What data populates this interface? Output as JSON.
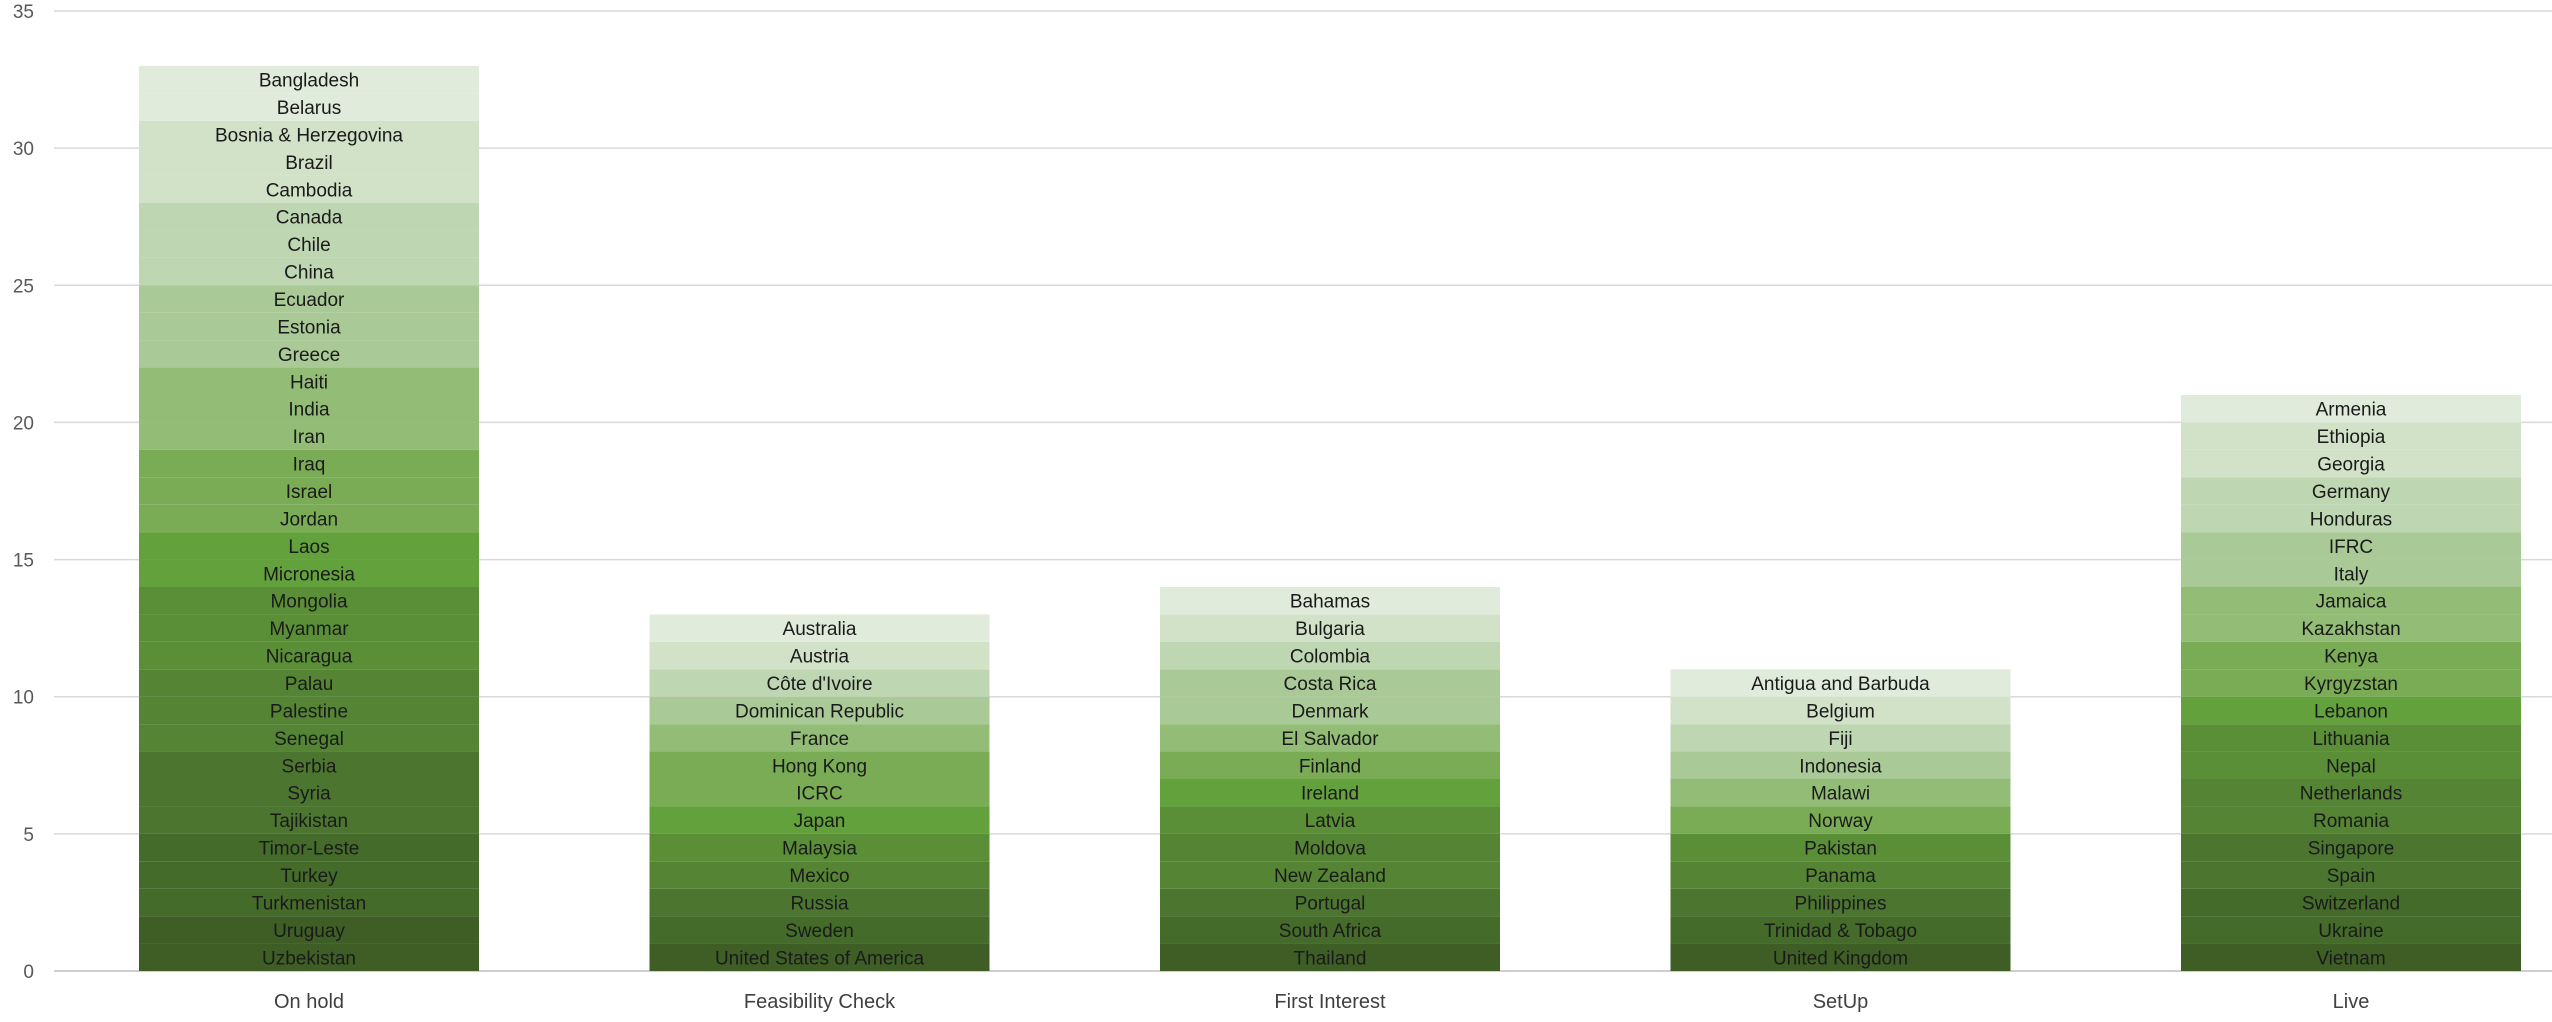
{
  "chart_data": {
    "type": "bar",
    "stacked": true,
    "title": "",
    "xlabel": "",
    "ylabel": "",
    "ylim": [
      0,
      35
    ],
    "yticks": [
      0,
      5,
      10,
      15,
      20,
      25,
      30,
      35
    ],
    "grid": true,
    "legend": "none",
    "categories": [
      "On hold",
      "Feasibility Check",
      "First Interest",
      "SetUp",
      "Live"
    ],
    "values": [
      33,
      13,
      14,
      11,
      21
    ],
    "segment_value": 1,
    "segments": [
      [
        "Uzbekistan",
        "Uruguay",
        "Turkmenistan",
        "Turkey",
        "Timor-Leste",
        "Tajikistan",
        "Syria",
        "Serbia",
        "Senegal",
        "Palestine",
        "Palau",
        "Nicaragua",
        "Myanmar",
        "Mongolia",
        "Micronesia",
        "Laos",
        "Jordan",
        "Israel",
        "Iraq",
        "Iran",
        "India",
        "Haiti",
        "Greece",
        "Estonia",
        "Ecuador",
        "China",
        "Chile",
        "Canada",
        "Cambodia",
        "Brazil",
        "Bosnia & Herzegovina",
        "Belarus",
        "Bangladesh"
      ],
      [
        "United States of America",
        "Sweden",
        "Russia",
        "Mexico",
        "Malaysia",
        "Japan",
        "ICRC",
        "Hong Kong",
        "France",
        "Dominican Republic",
        "Côte d'Ivoire",
        "Austria",
        "Australia"
      ],
      [
        "Thailand",
        "South Africa",
        "Portugal",
        "New Zealand",
        "Moldova",
        "Latvia",
        "Ireland",
        "Finland",
        "El Salvador",
        "Denmark",
        "Costa Rica",
        "Colombia",
        "Bulgaria",
        "Bahamas"
      ],
      [
        "United Kingdom",
        "Trinidad & Tobago",
        "Philippines",
        "Panama",
        "Pakistan",
        "Norway",
        "Malawi",
        "Indonesia",
        "Fiji",
        "Belgium",
        "Antigua and Barbuda"
      ],
      [
        "Vietnam",
        "Ukraine",
        "Switzerland",
        "Spain",
        "Singapore",
        "Romania",
        "Netherlands",
        "Nepal",
        "Lithuania",
        "Lebanon",
        "Kyrgyzstan",
        "Kenya",
        "Kazakhstan",
        "Jamaica",
        "Italy",
        "IFRC",
        "Honduras",
        "Germany",
        "Georgia",
        "Ethiopia",
        "Armenia"
      ]
    ],
    "palette": [
      "#3e5e26",
      "#456b2b",
      "#4c7630",
      "#548434",
      "#5a8f37",
      "#62a13b",
      "#7aac56",
      "#93bd76",
      "#a9c996",
      "#bed6b2",
      "#d1e2c8",
      "#e1ebdb"
    ]
  }
}
